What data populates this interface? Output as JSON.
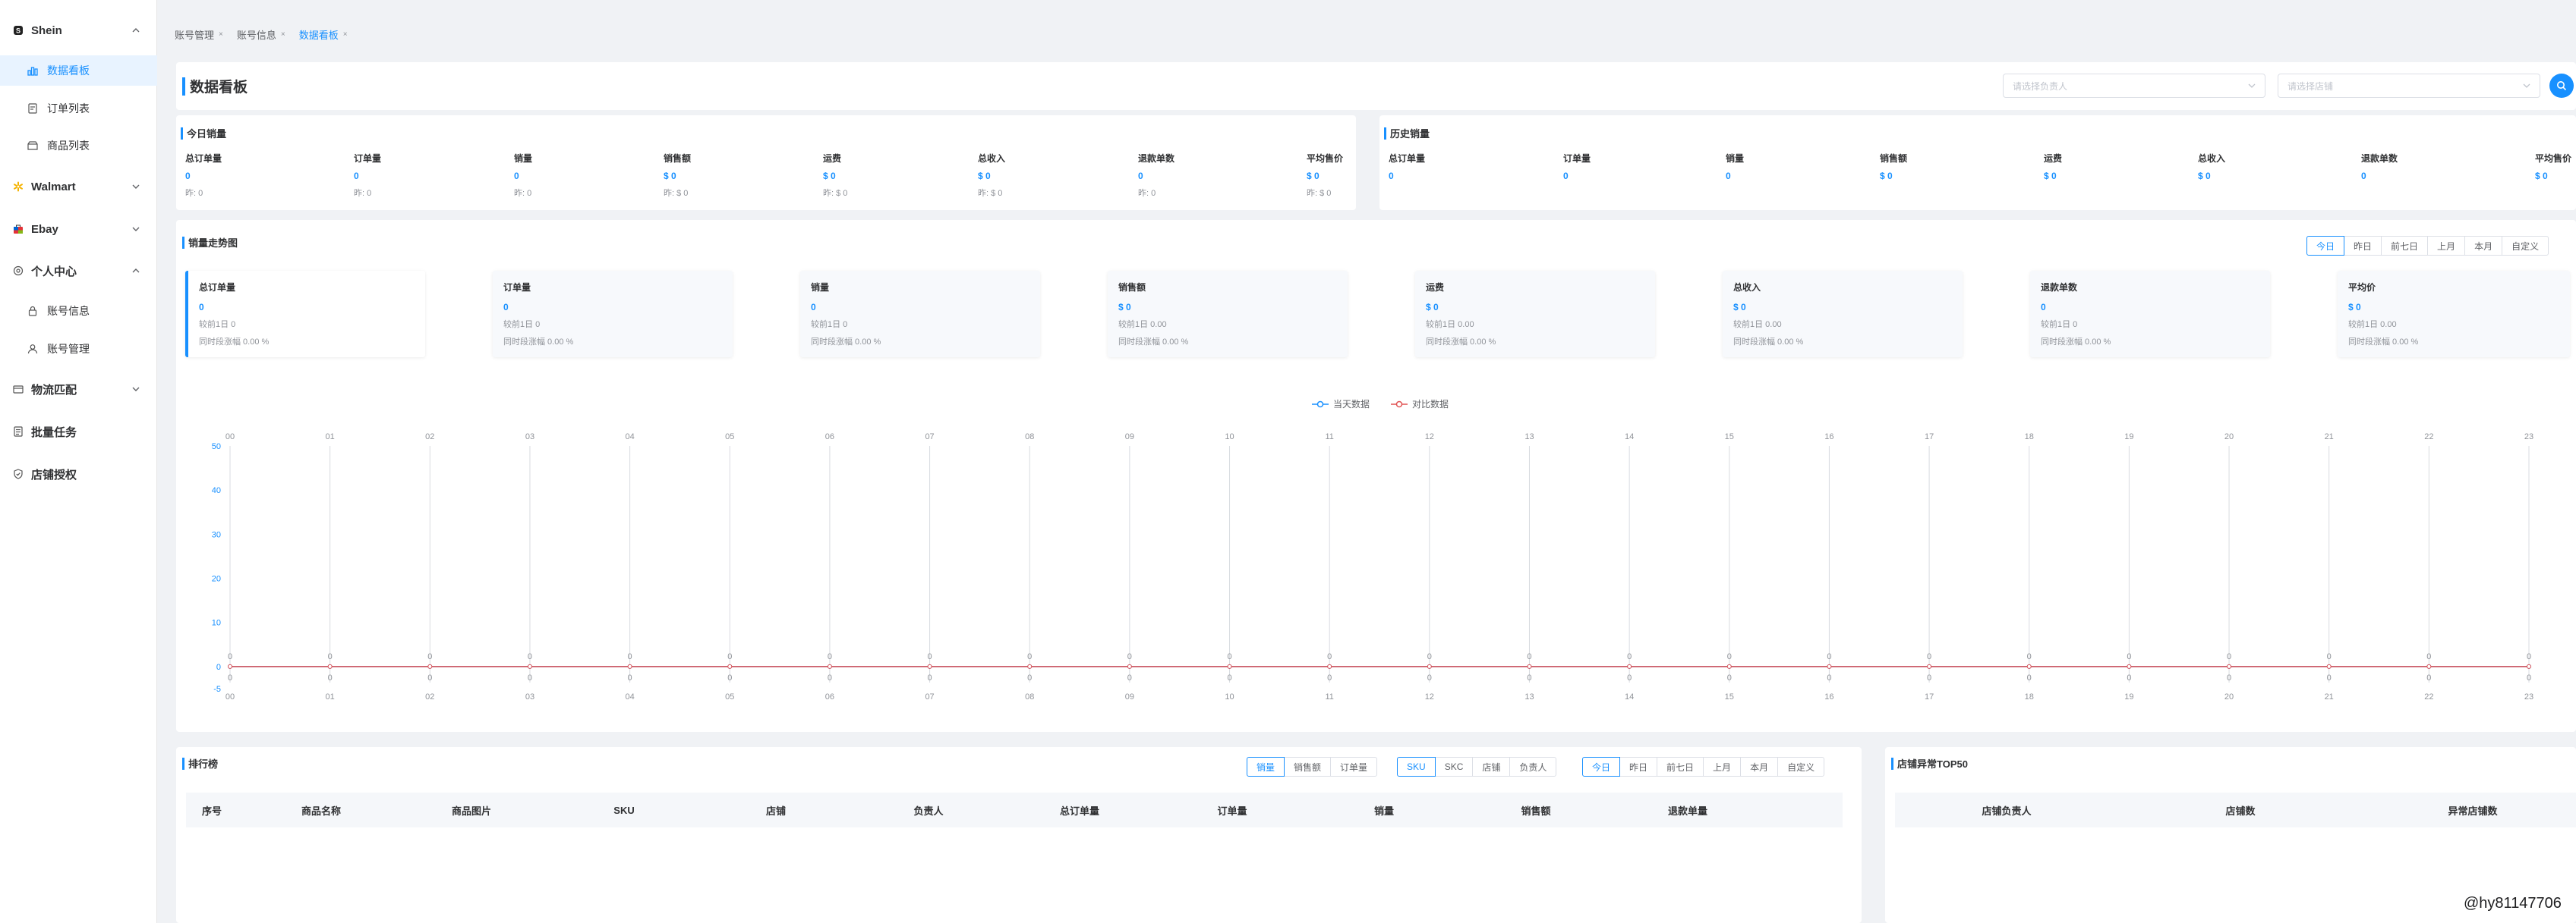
{
  "sidebar": {
    "groups": [
      {
        "label": "Shein",
        "icon": "shein-logo-icon"
      },
      {
        "label": "Walmart",
        "icon": "walmart-logo-icon"
      },
      {
        "label": "Ebay",
        "icon": "ebay-logo-icon"
      },
      {
        "label": "个人中心",
        "icon": "user-center-icon"
      },
      {
        "label": "物流匹配",
        "icon": "logistics-icon"
      },
      {
        "label": "批量任务",
        "icon": "batch-task-icon"
      },
      {
        "label": "店铺授权",
        "icon": "shield-icon"
      }
    ],
    "items": [
      {
        "label": "数据看板",
        "icon": "dashboard-icon",
        "active": true
      },
      {
        "label": "订单列表",
        "icon": "order-list-icon"
      },
      {
        "label": "商品列表",
        "icon": "product-list-icon"
      },
      {
        "label": "账号信息",
        "icon": "lock-icon"
      },
      {
        "label": "账号管理",
        "icon": "user-icon"
      }
    ]
  },
  "breadcrumb": [
    "账号管理",
    "账号信息",
    "数据看板"
  ],
  "header": {
    "title": "数据看板",
    "owner_placeholder": "请选择负责人",
    "store_placeholder": "请选择店铺"
  },
  "today_sales": {
    "title": "今日销量",
    "stats": [
      {
        "label": "总订单量",
        "value": "0",
        "prev": "昨: 0"
      },
      {
        "label": "订单量",
        "value": "0",
        "prev": "昨: 0"
      },
      {
        "label": "销量",
        "value": "0",
        "prev": "昨: 0"
      },
      {
        "label": "销售额",
        "value": "$ 0",
        "prev": "昨: $ 0"
      },
      {
        "label": "运费",
        "value": "$ 0",
        "prev": "昨: $ 0"
      },
      {
        "label": "总收入",
        "value": "$ 0",
        "prev": "昨: $ 0"
      },
      {
        "label": "退款单数",
        "value": "0",
        "prev": "昨: 0"
      },
      {
        "label": "平均售价",
        "value": "$ 0",
        "prev": "昨: $ 0"
      }
    ]
  },
  "history_sales": {
    "title": "历史销量",
    "stats": [
      {
        "label": "总订单量",
        "value": "0"
      },
      {
        "label": "订单量",
        "value": "0"
      },
      {
        "label": "销量",
        "value": "0"
      },
      {
        "label": "销售额",
        "value": "$ 0"
      },
      {
        "label": "运费",
        "value": "$ 0"
      },
      {
        "label": "总收入",
        "value": "$ 0"
      },
      {
        "label": "退款单数",
        "value": "0"
      },
      {
        "label": "平均售价",
        "value": "$ 0"
      }
    ]
  },
  "trend": {
    "title": "销量走势图",
    "ranges": [
      "今日",
      "昨日",
      "前七日",
      "上月",
      "本月",
      "自定义"
    ],
    "active_range": "今日",
    "boxes": [
      {
        "label": "总订单量",
        "value": "0",
        "cmp": "较前1日 0",
        "ratio": "同时段涨幅 0.00 %"
      },
      {
        "label": "订单量",
        "value": "0",
        "cmp": "较前1日 0",
        "ratio": "同时段涨幅 0.00 %"
      },
      {
        "label": "销量",
        "value": "0",
        "cmp": "较前1日 0",
        "ratio": "同时段涨幅 0.00 %"
      },
      {
        "label": "销售额",
        "value": "$ 0",
        "cmp": "较前1日 0.00",
        "ratio": "同时段涨幅 0.00 %"
      },
      {
        "label": "运费",
        "value": "$ 0",
        "cmp": "较前1日 0.00",
        "ratio": "同时段涨幅 0.00 %"
      },
      {
        "label": "总收入",
        "value": "$ 0",
        "cmp": "较前1日 0.00",
        "ratio": "同时段涨幅 0.00 %"
      },
      {
        "label": "退款单数",
        "value": "0",
        "cmp": "较前1日 0",
        "ratio": "同时段涨幅 0.00 %"
      },
      {
        "label": "平均价",
        "value": "$ 0",
        "cmp": "较前1日 0.00",
        "ratio": "同时段涨幅 0.00 %"
      }
    ],
    "legend": [
      "当天数据",
      "对比数据"
    ]
  },
  "chart_data": {
    "type": "line",
    "title": "",
    "xlabel": "",
    "ylabel": "",
    "x": [
      "00",
      "01",
      "02",
      "03",
      "04",
      "05",
      "06",
      "07",
      "08",
      "09",
      "10",
      "11",
      "12",
      "13",
      "14",
      "15",
      "16",
      "17",
      "18",
      "19",
      "20",
      "21",
      "22",
      "23"
    ],
    "y_ticks": [
      "50",
      "40",
      "30",
      "20",
      "10",
      "0",
      "-5"
    ],
    "ylim": [
      -5,
      50
    ],
    "grid": true,
    "series": [
      {
        "name": "当天数据",
        "color": "#1890ff",
        "values": [
          0,
          0,
          0,
          0,
          0,
          0,
          0,
          0,
          0,
          0,
          0,
          0,
          0,
          0,
          0,
          0,
          0,
          0,
          0,
          0,
          0,
          0,
          0,
          0
        ]
      },
      {
        "name": "对比数据",
        "color": "#e05252",
        "values": [
          0,
          0,
          0,
          0,
          0,
          0,
          0,
          0,
          0,
          0,
          0,
          0,
          0,
          0,
          0,
          0,
          0,
          0,
          0,
          0,
          0,
          0,
          0,
          0
        ]
      }
    ]
  },
  "ranking": {
    "title": "排行榜",
    "metric_tabs": [
      "销量",
      "销售额",
      "订单量"
    ],
    "dimension_tabs": [
      "SKU",
      "SKC",
      "店铺",
      "负责人"
    ],
    "range_tabs": [
      "今日",
      "昨日",
      "前七日",
      "上月",
      "本月",
      "自定义"
    ],
    "columns": [
      "序号",
      "商品名称",
      "商品图片",
      "SKU",
      "店铺",
      "负责人",
      "总订单量",
      "订单量",
      "销量",
      "销售额",
      "退款单量"
    ]
  },
  "store_abnormal": {
    "title": "店铺异常TOP50",
    "columns": [
      "店铺负责人",
      "店铺数",
      "异常店铺数"
    ]
  },
  "watermark": "@hy81147706",
  "colors": {
    "accent": "#1890ff",
    "compare": "#e05252"
  }
}
